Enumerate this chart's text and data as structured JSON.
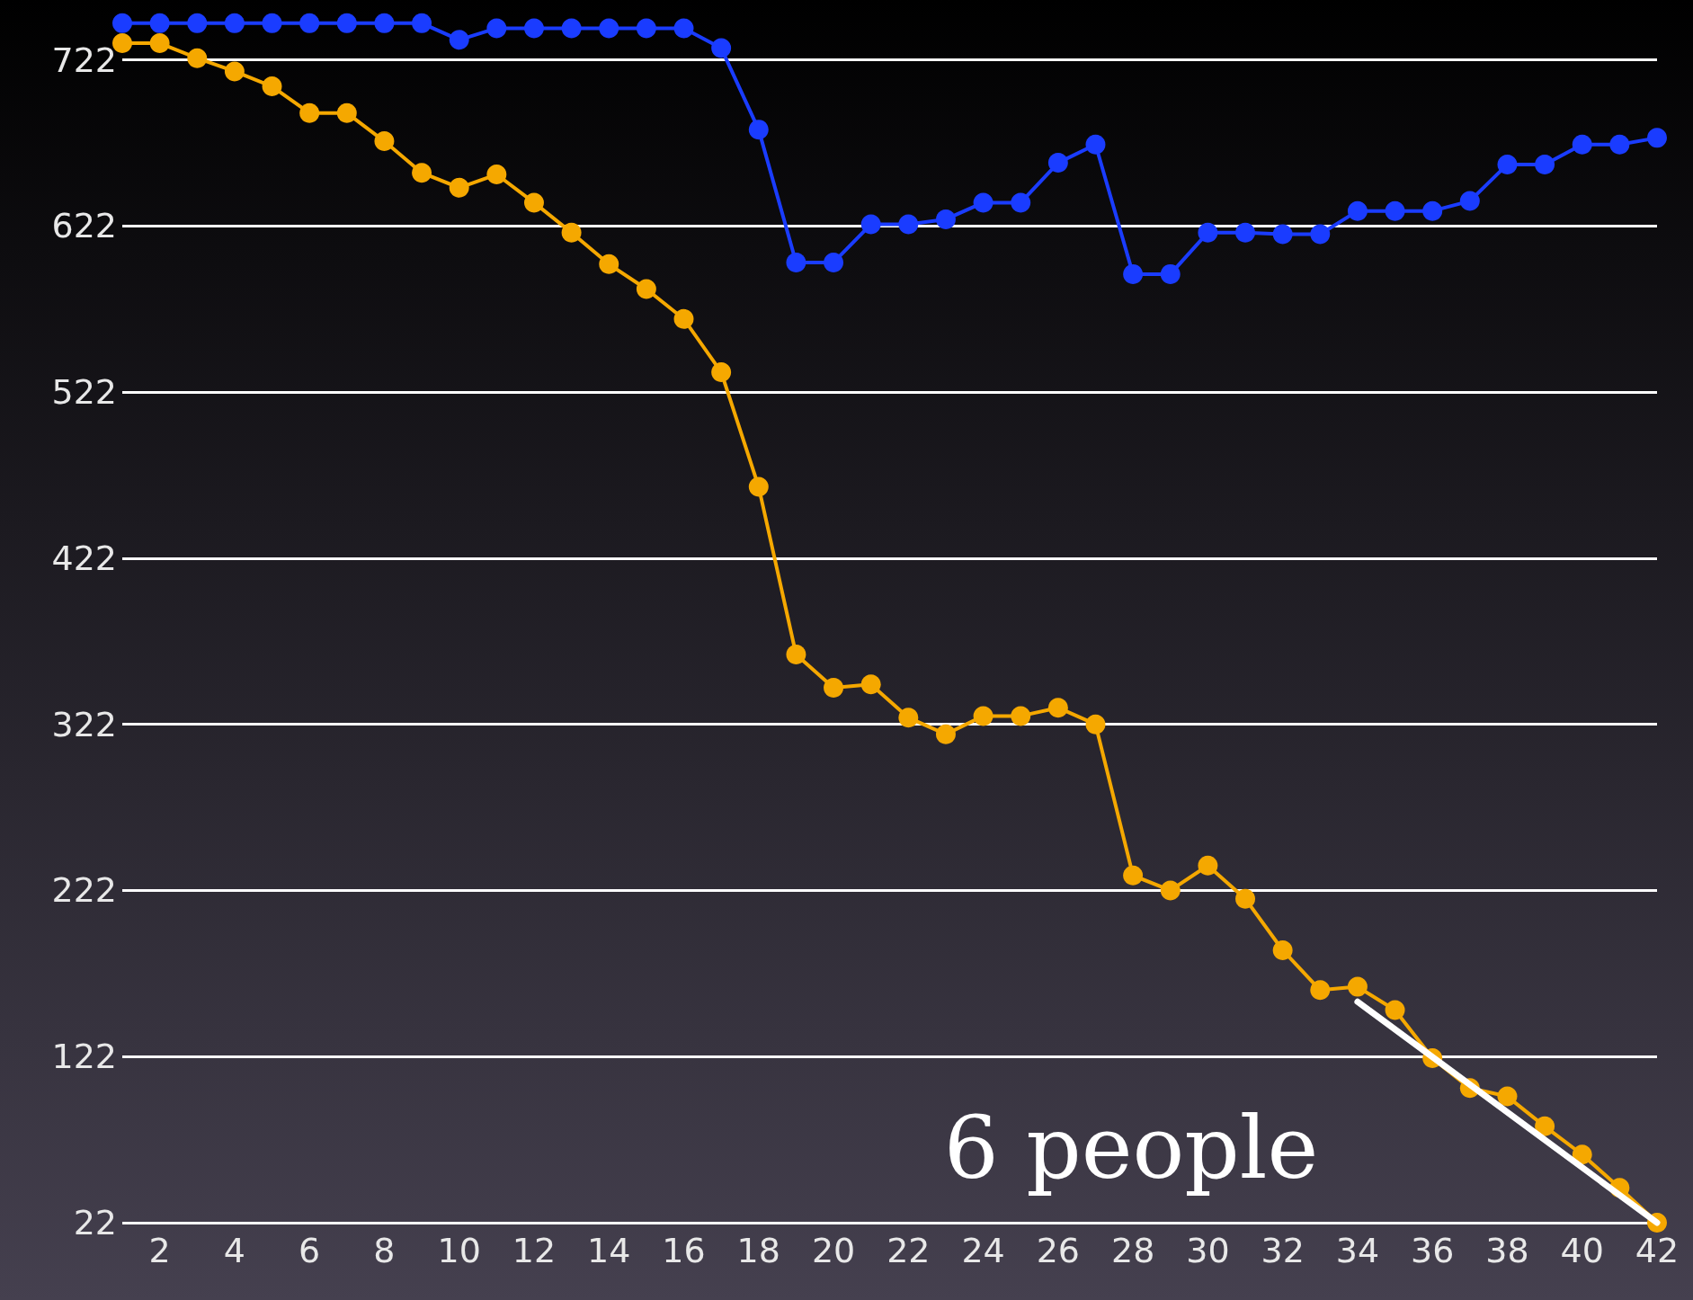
{
  "chart_data": {
    "type": "line",
    "xlim": [
      1,
      42
    ],
    "xticks": [
      2,
      4,
      6,
      8,
      10,
      12,
      14,
      16,
      18,
      20,
      22,
      24,
      26,
      28,
      30,
      32,
      34,
      36,
      38,
      40,
      42
    ],
    "ylim": [
      22,
      758
    ],
    "yticks": [
      22,
      122,
      222,
      322,
      422,
      522,
      622,
      722
    ],
    "grid": "y",
    "marker": "circle",
    "line_style": "solid",
    "x": [
      1,
      2,
      3,
      4,
      5,
      6,
      7,
      8,
      9,
      10,
      11,
      12,
      13,
      14,
      15,
      16,
      17,
      18,
      19,
      20,
      21,
      22,
      23,
      24,
      25,
      26,
      27,
      28,
      29,
      30,
      31,
      32,
      33,
      34,
      35,
      36,
      37,
      38,
      39,
      40,
      41,
      42
    ],
    "series": [
      {
        "color": "#1a3cff",
        "values": [
          744,
          744,
          744,
          744,
          744,
          744,
          744,
          744,
          744,
          734,
          741,
          741,
          741,
          741,
          741,
          741,
          729,
          680,
          600,
          600,
          623,
          623,
          626,
          636,
          636,
          660,
          671,
          593,
          593,
          618,
          618,
          617,
          617,
          631,
          631,
          631,
          637,
          659,
          659,
          671,
          671,
          675
        ]
      },
      {
        "color": "#f5a800",
        "values": [
          732,
          732,
          723,
          715,
          706,
          690,
          690,
          673,
          654,
          645,
          653,
          636,
          618,
          599,
          584,
          566,
          534,
          465,
          364,
          344,
          346,
          326,
          316,
          327,
          327,
          332,
          322,
          231,
          222,
          237,
          217,
          186,
          162,
          164,
          150,
          121,
          103,
          98,
          80,
          63,
          43,
          22
        ]
      },
      {
        "color": "#ffffff",
        "marker": "none",
        "x": [
          34,
          42
        ],
        "values": [
          155,
          22
        ]
      }
    ],
    "annotations": [
      "6 people"
    ]
  }
}
